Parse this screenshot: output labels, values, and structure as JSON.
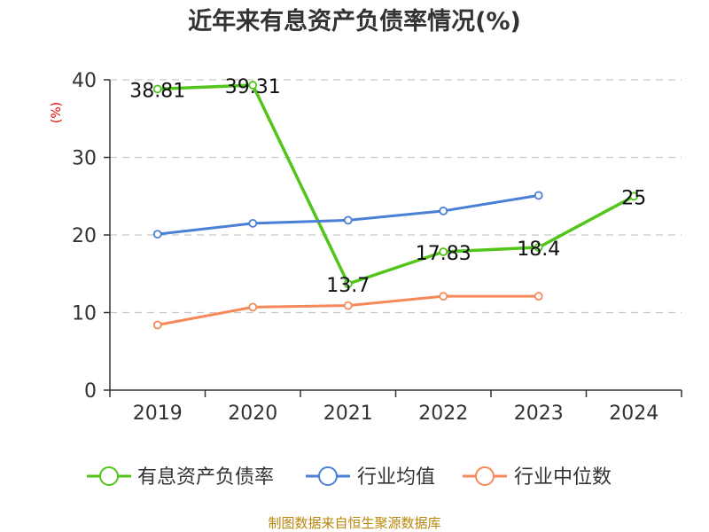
{
  "chart_data": {
    "type": "line",
    "title": "近年来有息资产负债率情况(%)",
    "ylabel": "(%)",
    "xlabel": "",
    "categories": [
      "2019",
      "2020",
      "2021",
      "2022",
      "2023",
      "2024"
    ],
    "ylim": [
      0,
      40
    ],
    "yticks": [
      0,
      10,
      20,
      30,
      40
    ],
    "grid": true,
    "legend_position": "bottom",
    "series": [
      {
        "name": "有息资产负债率",
        "color": "#52c41a",
        "values": [
          38.81,
          39.31,
          13.7,
          17.83,
          18.4,
          25
        ],
        "labels": [
          "38.81",
          "39.31",
          "13.7",
          "17.83",
          "18.4",
          "25"
        ]
      },
      {
        "name": "行业均值",
        "color": "#4a7fd6",
        "values": [
          20.1,
          21.5,
          21.9,
          23.1,
          25.1,
          null
        ]
      },
      {
        "name": "行业中位数",
        "color": "#f5895a",
        "values": [
          8.4,
          10.7,
          10.9,
          12.1,
          12.1,
          null
        ]
      }
    ]
  },
  "source": "制图数据来自恒生聚源数据库"
}
